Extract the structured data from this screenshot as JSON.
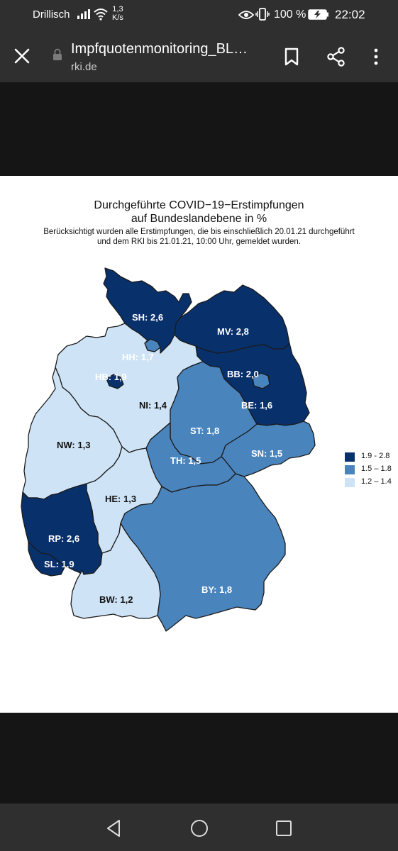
{
  "status_bar": {
    "carrier": "Drillisch",
    "speed_value": "1,3",
    "speed_unit": "K/s",
    "battery_percent": "100 %",
    "time": "22:02",
    "icons": [
      "signal-icon",
      "wifi-icon",
      "eye-icon",
      "vibrate-icon",
      "battery-charging-icon"
    ]
  },
  "toolbar": {
    "title": "Impfquotenmonitoring_BL…",
    "domain": "rki.de",
    "icons": [
      "close-icon",
      "lock-icon",
      "bookmark-icon",
      "share-icon",
      "more-vert-icon"
    ]
  },
  "colors": {
    "high": "#08306b",
    "mid": "#4a84bd",
    "low": "#cfe3f6",
    "high_label": "#ffffff",
    "mid_label": "#ffffff",
    "low_label": "#111111"
  },
  "chart_data": {
    "type": "choropleth",
    "title_line1": "Durchgeführte COVID−19−Erstimpfungen",
    "title_line2": "auf Bundeslandebene in %",
    "subtitle_line1": "Berücksichtigt wurden alle Erstimpfungen, die bis einschließlich 20.01.21 durchgeführt",
    "subtitle_line2": "und dem RKI bis 21.01.21, 10:00 Uhr, gemeldet wurden.",
    "legend": [
      {
        "label": "1.9 -  2.8",
        "class": "high"
      },
      {
        "label": "1.5 –  1.8",
        "class": "mid"
      },
      {
        "label": "1.2 –  1.4",
        "class": "low"
      }
    ],
    "states": [
      {
        "code": "SH",
        "value": 2.6,
        "class": "high",
        "label": "SH: 2,6"
      },
      {
        "code": "MV",
        "value": 2.8,
        "class": "high",
        "label": "MV: 2,8"
      },
      {
        "code": "HH",
        "value": 1.7,
        "class": "mid",
        "label": "HH: 1,7"
      },
      {
        "code": "HB",
        "value": 1.9,
        "class": "high",
        "label": "HB: 1,9"
      },
      {
        "code": "BB",
        "value": 2.0,
        "class": "high",
        "label": "BB: 2,0"
      },
      {
        "code": "BE",
        "value": 1.6,
        "class": "mid",
        "label": "BE: 1,6"
      },
      {
        "code": "NI",
        "value": 1.4,
        "class": "low",
        "label": "NI: 1,4"
      },
      {
        "code": "ST",
        "value": 1.8,
        "class": "mid",
        "label": "ST: 1,8"
      },
      {
        "code": "NW",
        "value": 1.3,
        "class": "low",
        "label": "NW: 1,3"
      },
      {
        "code": "SN",
        "value": 1.5,
        "class": "mid",
        "label": "SN: 1,5"
      },
      {
        "code": "TH",
        "value": 1.5,
        "class": "mid",
        "label": "TH: 1,5"
      },
      {
        "code": "HE",
        "value": 1.3,
        "class": "low",
        "label": "HE: 1,3"
      },
      {
        "code": "RP",
        "value": 2.6,
        "class": "high",
        "label": "RP: 2,6"
      },
      {
        "code": "SL",
        "value": 1.9,
        "class": "high",
        "label": "SL: 1,9"
      },
      {
        "code": "BY",
        "value": 1.8,
        "class": "mid",
        "label": "BY: 1,8"
      },
      {
        "code": "BW",
        "value": 1.2,
        "class": "low",
        "label": "BW: 1,2"
      }
    ]
  },
  "nav_bar": {
    "icons": [
      "back-icon",
      "home-icon",
      "recents-icon"
    ]
  }
}
